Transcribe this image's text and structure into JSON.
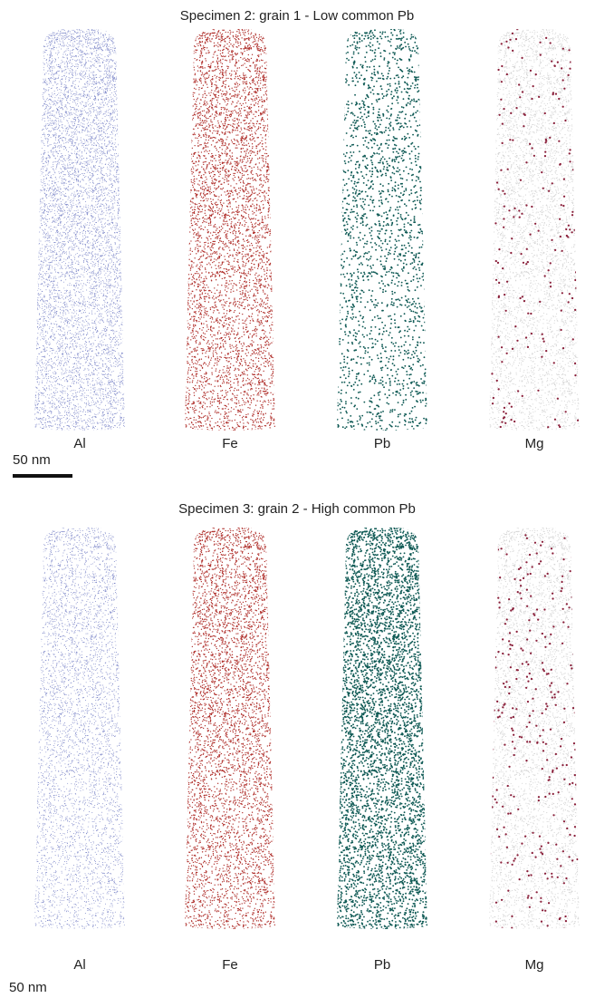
{
  "panels": [
    {
      "title": "Specimen 2: grain 1 - Low common Pb",
      "labels": [
        "Al",
        "Fe",
        "Pb",
        "Mg"
      ],
      "scale_bar": "50 nm"
    },
    {
      "title": "Specimen 3: grain 2 - High common Pb",
      "labels": [
        "Al",
        "Fe",
        "Pb",
        "Mg"
      ],
      "scale_bar": "50 nm"
    }
  ]
}
